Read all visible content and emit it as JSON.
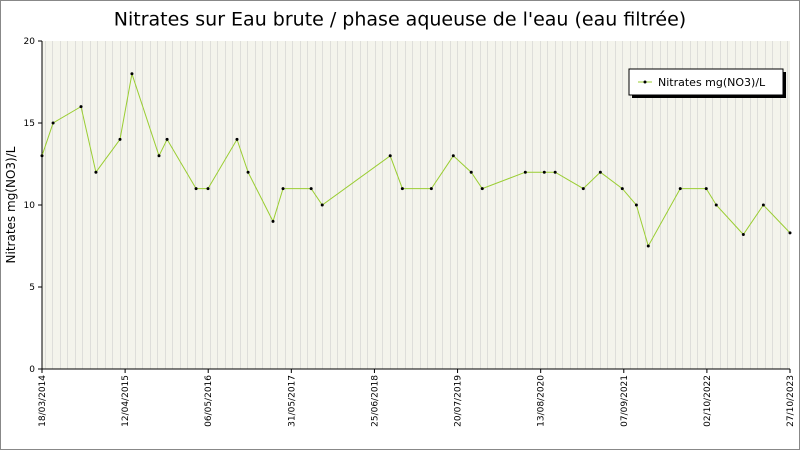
{
  "chart_data": {
    "type": "line",
    "title": "Nitrates sur Eau brute / phase aqueuse de l'eau (eau filtrée)",
    "y_label": "Nitrates mg(NO3)/L",
    "x": [
      "18/03/2014",
      "09/05/2014",
      "17/09/2014",
      "26/11/2014",
      "19/03/2015",
      "14/05/2015",
      "18/09/2015",
      "26/10/2015",
      "10/03/2016",
      "05/05/2016",
      "18/09/2016",
      "09/11/2016",
      "06/03/2017",
      "22/04/2017",
      "01/09/2017",
      "23/10/2017",
      "07/09/2018",
      "03/11/2018",
      "19/03/2019",
      "30/06/2019",
      "22/09/2019",
      "13/11/2019",
      "02/06/2020",
      "30/08/2020",
      "20/10/2020",
      "01/03/2021",
      "20/05/2021",
      "31/08/2021",
      "05/11/2021",
      "31/12/2021",
      "30/05/2022",
      "29/09/2022",
      "15/11/2022",
      "22/03/2023",
      "24/06/2023",
      "27/10/2023"
    ],
    "series": [
      {
        "name": "Nitrates mg(NO3)/L",
        "color": "#9acd32",
        "values": [
          13,
          15,
          16,
          12,
          14,
          18,
          13,
          14,
          11,
          11,
          14,
          12,
          9,
          11,
          11,
          10,
          13,
          11,
          11,
          13,
          12,
          11,
          12,
          12,
          12,
          11,
          12,
          11,
          10,
          7.5,
          11,
          11,
          10,
          8.2,
          10,
          8.3
        ]
      }
    ],
    "xlim": [
      "18/03/2014",
      "27/10/2023"
    ],
    "xticks": [
      "18/03/2014",
      "12/04/2015",
      "06/05/2016",
      "31/05/2017",
      "25/06/2018",
      "20/07/2019",
      "13/08/2020",
      "07/09/2021",
      "02/10/2022",
      "27/10/2023"
    ],
    "ylim": [
      0,
      20
    ],
    "yticks": [
      0,
      5,
      10,
      15,
      20
    ],
    "grid": true,
    "legend": "top-right"
  }
}
